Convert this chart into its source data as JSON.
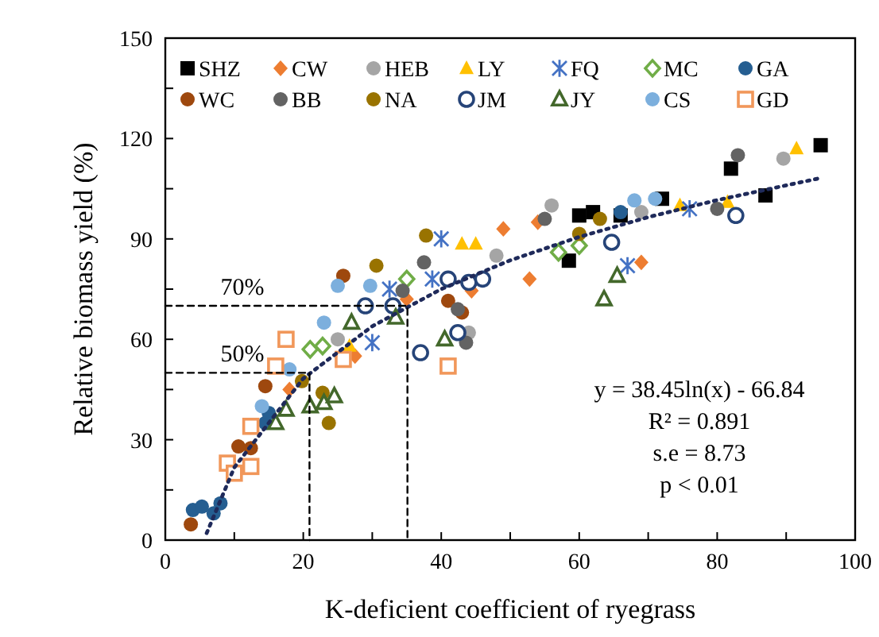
{
  "chart_data": {
    "type": "scatter",
    "xlabel": "K-deficient coefficient of ryegrass",
    "ylabel": "Relative biomass yield (%)",
    "xlim": [
      0,
      100
    ],
    "xticks": [
      0,
      {
        "value": 10,
        "label": null
      },
      20,
      {
        "value": 30,
        "label": null
      },
      40,
      {
        "value": 50,
        "label": null
      },
      60,
      {
        "value": 70,
        "label": null
      },
      80,
      {
        "value": 90,
        "label": null
      },
      100
    ],
    "ylim": [
      0,
      150
    ],
    "yticks": [
      0,
      {
        "value": 15,
        "label": null
      },
      30,
      {
        "value": 45,
        "label": null
      },
      60,
      {
        "value": 75,
        "label": null
      },
      90,
      {
        "value": 105,
        "label": null
      },
      120,
      {
        "value": 135,
        "label": null
      },
      150
    ],
    "grid": false,
    "legend": "top",
    "annotations": [
      {
        "text": "70%",
        "x": 8,
        "y": 70
      },
      {
        "text": "50%",
        "x": 8,
        "y": 50
      },
      "y = 38.45ln(x) - 66.84",
      "R² = 0.891",
      "s.e = 8.73",
      "p < 0.01"
    ],
    "series": [
      {
        "name": "SHZ",
        "color": "#000000",
        "marker": "square",
        "x": [
          58.5,
          60,
          62,
          66,
          72,
          82,
          87,
          95
        ],
        "values": [
          83.5,
          97,
          98,
          97,
          102,
          111,
          103,
          118
        ]
      },
      {
        "name": "CW",
        "color": "#ed7d31",
        "marker": "diamond",
        "x": [
          18,
          27.5,
          35,
          44.4,
          49,
          52.8,
          54,
          69
        ],
        "values": [
          45,
          55,
          72,
          74.5,
          93,
          78,
          95,
          83
        ]
      },
      {
        "name": "HEB",
        "color": "#a5a5a5",
        "marker": "circle",
        "x": [
          25,
          44,
          48,
          56,
          69,
          89.6
        ],
        "values": [
          60,
          62,
          85,
          100,
          98,
          114
        ]
      },
      {
        "name": "LY",
        "color": "#ffc000",
        "marker": "triangle",
        "x": [
          26.7,
          43,
          45,
          74.6,
          81.5,
          91.5
        ],
        "values": [
          58,
          88.5,
          88.5,
          100,
          101,
          117
        ]
      },
      {
        "name": "FQ",
        "color": "#4472c4",
        "marker": "cross",
        "x": [
          30,
          32.5,
          38.7,
          40,
          67,
          76
        ],
        "values": [
          59,
          75,
          78,
          90,
          82,
          99
        ]
      },
      {
        "name": "MC",
        "color": "#70ad47",
        "marker": "diamond-open",
        "x": [
          21,
          22.8,
          35,
          57,
          60
        ],
        "values": [
          57,
          58,
          78,
          86,
          88
        ]
      },
      {
        "name": "GA",
        "color": "#255e91",
        "marker": "circle",
        "x": [
          4,
          5.3,
          7,
          8,
          14.5,
          15,
          66
        ],
        "values": [
          9,
          10,
          8,
          11,
          35,
          38,
          98
        ]
      },
      {
        "name": "WC",
        "color": "#9e480e",
        "marker": "circle",
        "x": [
          3.7,
          10.6,
          12.4,
          14.5,
          25.8,
          41,
          43
        ],
        "values": [
          4.7,
          28,
          27.5,
          46,
          79,
          71.5,
          68
        ]
      },
      {
        "name": "BB",
        "color": "#636363",
        "marker": "circle",
        "x": [
          34.4,
          37.5,
          42.4,
          43.6,
          55,
          80,
          83
        ],
        "values": [
          74.5,
          83,
          69,
          59,
          96,
          99,
          115
        ]
      },
      {
        "name": "NA",
        "color": "#997300",
        "marker": "circle",
        "x": [
          19.8,
          22.8,
          23.7,
          30.6,
          37.8,
          60,
          63
        ],
        "values": [
          47.5,
          44,
          35,
          82,
          91,
          91.5,
          96
        ]
      },
      {
        "name": "JM",
        "color": "#264478",
        "marker": "circle-open",
        "x": [
          29,
          33,
          37,
          41,
          42.4,
          44,
          46,
          64.7,
          82.7
        ],
        "values": [
          70,
          70,
          56,
          78,
          62,
          77,
          78,
          89,
          97
        ]
      },
      {
        "name": "JY",
        "color": "#43682b",
        "marker": "triangle-open",
        "x": [
          16,
          17.5,
          21,
          23,
          24.5,
          27,
          33.4,
          40.5,
          63.6,
          65.5
        ],
        "values": [
          35,
          39,
          40,
          41,
          43,
          65,
          66.5,
          60,
          72,
          79
        ]
      },
      {
        "name": "CS",
        "color": "#7cafdd",
        "marker": "circle",
        "x": [
          14,
          18,
          23,
          25,
          29.7,
          68,
          71
        ],
        "values": [
          40,
          51,
          65,
          76,
          76,
          101.5,
          102
        ]
      },
      {
        "name": "GD",
        "color": "#f1975a",
        "marker": "square-open",
        "x": [
          9,
          10,
          12.4,
          12.4,
          16,
          17.5,
          25.8,
          41
        ],
        "values": [
          23,
          20,
          22,
          34,
          52,
          60,
          54,
          52
        ]
      },
      {
        "type": "line",
        "color": "#1f2a5a",
        "marker": "none",
        "line_style": "dotted",
        "x": [
          6,
          10,
          20,
          30,
          40,
          50,
          60,
          70,
          80,
          95
        ],
        "values": [
          2.1,
          21.7,
          48.3,
          63.9,
          75.0,
          83.6,
          90.6,
          96.5,
          101.6,
          108.2
        ]
      },
      {
        "type": "line",
        "color": "#000000",
        "marker": "none",
        "line_style": "dashed",
        "x": [
          0,
          35.1,
          35.1
        ],
        "values": [
          70,
          70,
          0
        ]
      },
      {
        "type": "line",
        "color": "#000000",
        "marker": "none",
        "line_style": "dashed",
        "x": [
          0,
          20.9,
          20.9
        ],
        "values": [
          50,
          50,
          0
        ]
      }
    ]
  }
}
